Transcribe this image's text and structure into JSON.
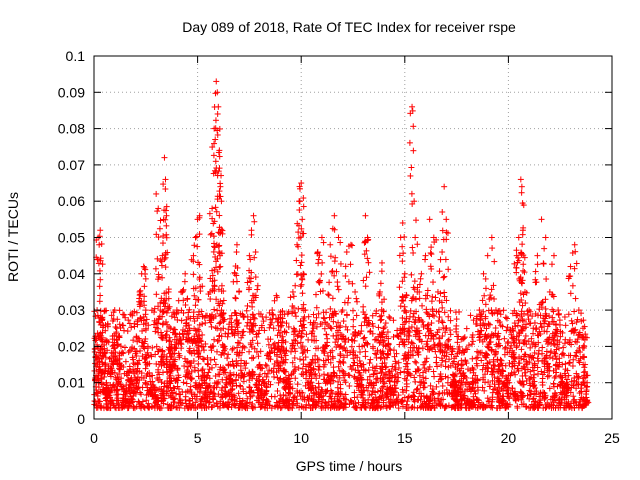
{
  "chart_data": {
    "type": "scatter",
    "title": "Day 089 of 2018, Rate Of TEC Index for receiver rspe",
    "xlabel": "GPS time / hours",
    "ylabel": "ROTI / TECUs",
    "xlim": [
      0,
      25
    ],
    "ylim": [
      0,
      0.1
    ],
    "x_ticks": [
      0,
      5,
      10,
      15,
      20,
      25
    ],
    "x_tick_labels": [
      "0",
      "5",
      "10",
      "15",
      "20",
      "25"
    ],
    "y_ticks": [
      0,
      0.01,
      0.02,
      0.03,
      0.04,
      0.05,
      0.06,
      0.07,
      0.08,
      0.09,
      0.1
    ],
    "y_tick_labels": [
      "0",
      "0.01",
      "0.02",
      "0.03",
      "0.04",
      "0.05",
      "0.06",
      "0.07",
      "0.08",
      "0.09",
      "0.1"
    ],
    "grid": true,
    "marker": "+",
    "marker_color": "#ff0000",
    "series": [
      {
        "name": "ROTI",
        "points": [
          [
            0.1,
            0.012
          ],
          [
            0.15,
            0.03
          ],
          [
            0.2,
            0.05
          ],
          [
            0.25,
            0.048
          ],
          [
            0.3,
            0.052
          ],
          [
            0.35,
            0.02
          ],
          [
            0.4,
            0.028
          ],
          [
            0.5,
            0.018
          ],
          [
            0.6,
            0.01
          ],
          [
            0.7,
            0.008
          ],
          [
            0.8,
            0.014
          ],
          [
            0.9,
            0.022
          ],
          [
            1.0,
            0.03
          ],
          [
            1.1,
            0.025
          ],
          [
            1.2,
            0.015
          ],
          [
            1.4,
            0.009
          ],
          [
            1.6,
            0.012
          ],
          [
            1.8,
            0.008
          ],
          [
            2.0,
            0.018
          ],
          [
            2.1,
            0.026
          ],
          [
            2.2,
            0.035
          ],
          [
            2.3,
            0.04
          ],
          [
            2.4,
            0.042
          ],
          [
            2.5,
            0.03
          ],
          [
            2.6,
            0.02
          ],
          [
            2.8,
            0.012
          ],
          [
            3.0,
            0.008
          ],
          [
            3.0,
            0.062
          ],
          [
            3.1,
            0.058
          ],
          [
            3.2,
            0.03
          ],
          [
            3.3,
            0.045
          ],
          [
            3.4,
            0.072
          ],
          [
            3.45,
            0.066
          ],
          [
            3.5,
            0.056
          ],
          [
            3.6,
            0.035
          ],
          [
            3.7,
            0.025
          ],
          [
            3.8,
            0.015
          ],
          [
            3.9,
            0.028
          ],
          [
            4.0,
            0.03
          ],
          [
            4.2,
            0.035
          ],
          [
            4.4,
            0.04
          ],
          [
            4.5,
            0.033
          ],
          [
            4.6,
            0.025
          ],
          [
            4.8,
            0.045
          ],
          [
            4.9,
            0.05
          ],
          [
            5.0,
            0.055
          ],
          [
            5.1,
            0.056
          ],
          [
            5.2,
            0.02
          ],
          [
            5.3,
            0.012
          ],
          [
            5.5,
            0.015
          ],
          [
            5.6,
            0.035
          ],
          [
            5.7,
            0.058
          ],
          [
            5.8,
            0.08
          ],
          [
            5.85,
            0.077
          ],
          [
            5.9,
            0.093
          ],
          [
            5.95,
            0.09
          ],
          [
            6.0,
            0.086
          ],
          [
            6.05,
            0.074
          ],
          [
            6.1,
            0.064
          ],
          [
            6.15,
            0.06
          ],
          [
            6.2,
            0.051
          ],
          [
            6.3,
            0.02
          ],
          [
            6.4,
            0.01
          ],
          [
            6.6,
            0.012
          ],
          [
            6.8,
            0.04
          ],
          [
            6.9,
            0.048
          ],
          [
            7.0,
            0.035
          ],
          [
            7.2,
            0.02
          ],
          [
            7.5,
            0.045
          ],
          [
            7.6,
            0.052
          ],
          [
            7.7,
            0.056
          ],
          [
            7.8,
            0.046
          ],
          [
            8.0,
            0.015
          ],
          [
            8.2,
            0.01
          ],
          [
            8.4,
            0.022
          ],
          [
            8.6,
            0.03
          ],
          [
            8.8,
            0.034
          ],
          [
            9.0,
            0.028
          ],
          [
            9.2,
            0.018
          ],
          [
            9.4,
            0.012
          ],
          [
            9.6,
            0.035
          ],
          [
            9.8,
            0.048
          ],
          [
            9.9,
            0.06
          ],
          [
            10.0,
            0.065
          ],
          [
            10.05,
            0.055
          ],
          [
            10.1,
            0.04
          ],
          [
            10.2,
            0.03
          ],
          [
            10.4,
            0.015
          ],
          [
            10.6,
            0.025
          ],
          [
            10.8,
            0.046
          ],
          [
            11.0,
            0.05
          ],
          [
            11.2,
            0.02
          ],
          [
            11.4,
            0.048
          ],
          [
            11.6,
            0.056
          ],
          [
            11.8,
            0.05
          ],
          [
            12.0,
            0.03
          ],
          [
            12.2,
            0.046
          ],
          [
            12.4,
            0.048
          ],
          [
            12.6,
            0.035
          ],
          [
            12.8,
            0.02
          ],
          [
            13.0,
            0.015
          ],
          [
            13.1,
            0.056
          ],
          [
            13.2,
            0.05
          ],
          [
            13.4,
            0.01
          ],
          [
            13.6,
            0.006
          ],
          [
            13.8,
            0.035
          ],
          [
            13.9,
            0.043
          ],
          [
            14.0,
            0.033
          ],
          [
            14.2,
            0.018
          ],
          [
            14.4,
            0.012
          ],
          [
            14.6,
            0.018
          ],
          [
            14.8,
            0.05
          ],
          [
            14.9,
            0.054
          ],
          [
            15.0,
            0.04
          ],
          [
            15.2,
            0.025
          ],
          [
            15.35,
            0.086
          ],
          [
            15.45,
            0.06
          ],
          [
            15.5,
            0.05
          ],
          [
            15.6,
            0.035
          ],
          [
            15.8,
            0.04
          ],
          [
            16.0,
            0.045
          ],
          [
            16.2,
            0.055
          ],
          [
            16.4,
            0.05
          ],
          [
            16.6,
            0.035
          ],
          [
            16.8,
            0.046
          ],
          [
            16.9,
            0.064
          ],
          [
            17.0,
            0.055
          ],
          [
            17.2,
            0.02
          ],
          [
            17.4,
            0.012
          ],
          [
            17.6,
            0.01
          ],
          [
            17.8,
            0.015
          ],
          [
            18.0,
            0.01
          ],
          [
            18.2,
            0.008
          ],
          [
            18.4,
            0.012
          ],
          [
            18.6,
            0.03
          ],
          [
            18.8,
            0.04
          ],
          [
            19.0,
            0.045
          ],
          [
            19.2,
            0.05
          ],
          [
            19.4,
            0.03
          ],
          [
            19.6,
            0.015
          ],
          [
            19.8,
            0.01
          ],
          [
            20.0,
            0.012
          ],
          [
            20.2,
            0.025
          ],
          [
            20.4,
            0.045
          ],
          [
            20.5,
            0.05
          ],
          [
            20.6,
            0.066
          ],
          [
            20.65,
            0.064
          ],
          [
            20.7,
            0.052
          ],
          [
            20.8,
            0.035
          ],
          [
            21.0,
            0.03
          ],
          [
            21.2,
            0.025
          ],
          [
            21.4,
            0.045
          ],
          [
            21.6,
            0.055
          ],
          [
            21.8,
            0.05
          ],
          [
            22.0,
            0.035
          ],
          [
            22.2,
            0.045
          ],
          [
            22.4,
            0.03
          ],
          [
            22.6,
            0.015
          ],
          [
            22.8,
            0.01
          ],
          [
            23.0,
            0.042
          ],
          [
            23.2,
            0.048
          ],
          [
            23.4,
            0.03
          ],
          [
            23.6,
            0.025
          ],
          [
            23.7,
            0.015
          ],
          [
            23.8,
            0.01
          ]
        ]
      }
    ],
    "background_cloud": {
      "description": "dense band of crosses between 0.005 and 0.03 across the full time range",
      "x_range": [
        0,
        23.8
      ],
      "y_range": [
        0.003,
        0.03
      ]
    }
  }
}
